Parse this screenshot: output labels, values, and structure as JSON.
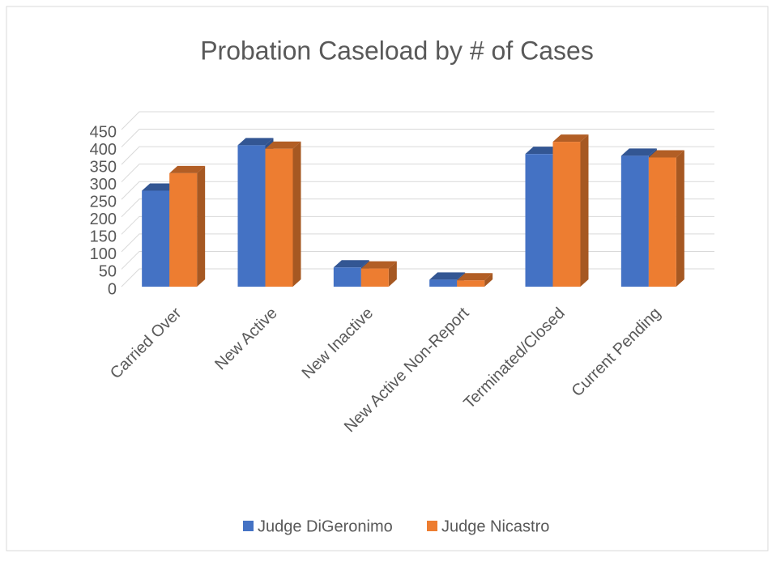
{
  "chart_data": {
    "type": "bar3d",
    "title": "Probation Caseload by # of Cases",
    "categories": [
      "Carried Over",
      "New Active",
      "New Inactive",
      "New Active Non-Report",
      "Terminated/Closed",
      "Current Pending"
    ],
    "series": [
      {
        "name": "Judge DiGeronimo",
        "color": "#4472c4",
        "values": [
          275,
          405,
          55,
          20,
          380,
          375
        ]
      },
      {
        "name": "Judge Nicastro",
        "color": "#ed7d31",
        "values": [
          325,
          395,
          52,
          18,
          415,
          370
        ]
      }
    ],
    "ylim": [
      0,
      450
    ],
    "yticks": [
      0,
      50,
      100,
      150,
      200,
      250,
      300,
      350,
      400,
      450
    ],
    "grid": true,
    "legend": "bottom"
  }
}
